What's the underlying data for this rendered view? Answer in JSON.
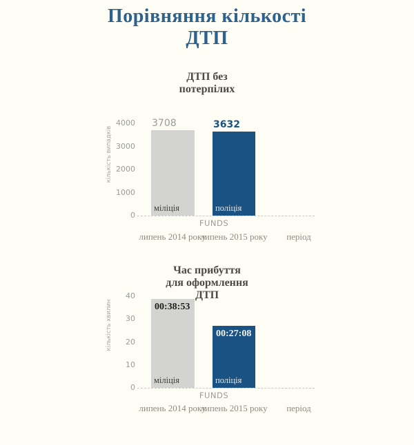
{
  "page": {
    "title": "Порівняння кількості\nДТП",
    "title_color": "#2d618e",
    "background_color": "#fdfcf5",
    "accent_blue": "#1a5284",
    "bar_gray": "#d3d3d2"
  },
  "chart_data": [
    {
      "type": "bar",
      "title": "ДТП без\nпотерпілих",
      "ylabel": "кількість випадків",
      "xlabel": "FUNDS",
      "x_axis_note": "період",
      "categories": [
        "липень 2014 року",
        "липень 2015 року"
      ],
      "ylim": [
        0,
        4000
      ],
      "yticks": [
        0,
        1000,
        2000,
        3000,
        4000
      ],
      "grid": false,
      "legend": "none",
      "series": [
        {
          "name": "міліція",
          "value": 3708,
          "value_label": "3708",
          "bar_color": "#d3d3d2",
          "value_label_color": "#9b9b96",
          "name_label_color": "#3f3e39"
        },
        {
          "name": "поліція",
          "value": 3632,
          "value_label": "3632",
          "bar_color": "#1a5284",
          "value_label_color": "#1a5284",
          "name_label_color": "#e9e8e2"
        }
      ]
    },
    {
      "type": "bar",
      "title": "Час прибуття\nдля оформлення\nДТП",
      "ylabel": "кількість хвилин",
      "xlabel": "FUNDS",
      "x_axis_note": "період",
      "categories": [
        "липень 2014 року",
        "липень 2015 року"
      ],
      "ylim": [
        0,
        40
      ],
      "yticks": [
        0,
        10,
        20,
        30,
        40
      ],
      "grid": false,
      "legend": "none",
      "series": [
        {
          "name": "міліція",
          "value": 38.88,
          "value_label": "00:38:53",
          "bar_color": "#d3d3d2",
          "value_label_color": "#1d1c18",
          "name_label_color": "#3f3e39"
        },
        {
          "name": "поліція",
          "value": 27.13,
          "value_label": "00:27:08",
          "bar_color": "#1a5284",
          "value_label_color": "#f3f2ec",
          "name_label_color": "#e9e8e2"
        }
      ]
    }
  ]
}
